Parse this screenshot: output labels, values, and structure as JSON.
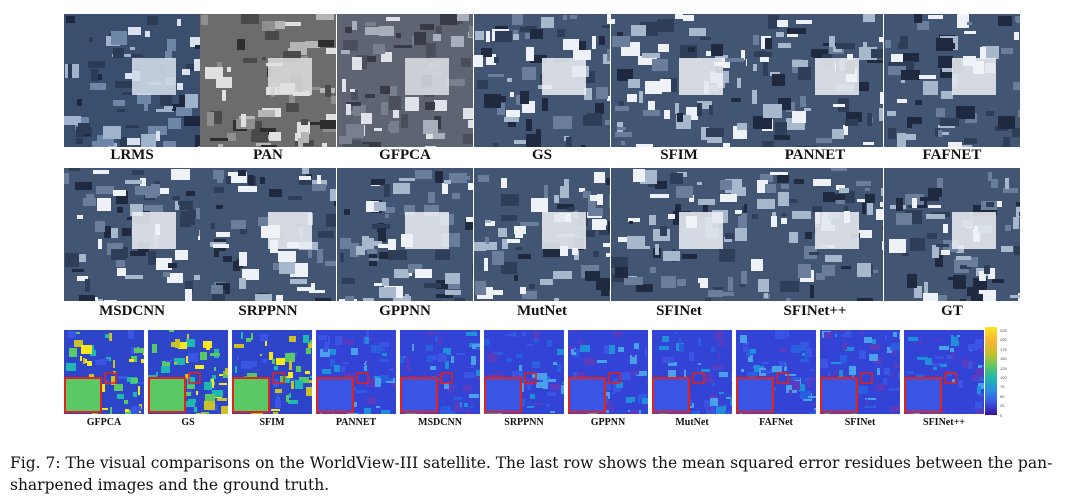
{
  "figure": {
    "row1_labels": [
      "LRMS",
      "PAN",
      "GFPCA",
      "GS",
      "SFIM",
      "PANNET",
      "FAFNET"
    ],
    "row2_labels": [
      "MSDCNN",
      "SRPPNN",
      "GPPNN",
      "MutNet",
      "SFINet",
      "SFINet++",
      "GT"
    ],
    "row3_labels": [
      "GFPCA",
      "GS",
      "SFIM",
      "PANNET",
      "MSDCNN",
      "SRPPNN",
      "GPPNN",
      "MutNet",
      "FAFNet",
      "SFINet",
      "SFINet++"
    ],
    "colorbar_ticks": [
      "225",
      "200",
      "175",
      "150",
      "125",
      "100",
      "75",
      "50",
      "25",
      "0"
    ]
  },
  "caption": "Fig. 7: The visual comparisons on the WorldView-III satellite. The last row shows the mean squared error residues between the pan-sharpened images and the ground truth."
}
